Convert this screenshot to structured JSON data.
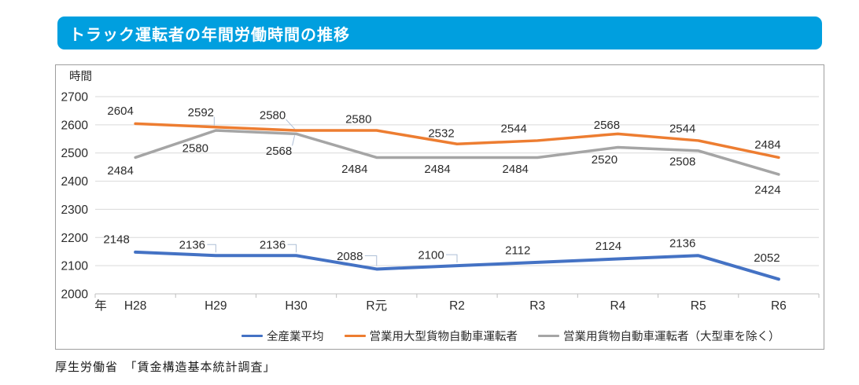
{
  "title": "トラック運転者の年間労働時間の推移",
  "source": "厚生労働省　「賃金構造基本統計調査」",
  "colors": {
    "banner": "#009fdf",
    "blue": "#4472C4",
    "orange": "#ED7D31",
    "gray": "#A5A5A5",
    "grid": "#d9d9d9",
    "axis": "#bfbfbf",
    "leader": "#aebfd6",
    "text": "#2b2b2b"
  },
  "chart_data": {
    "type": "line",
    "title": "トラック運転者の年間労働時間の推移",
    "y_unit_label": "時間",
    "x_axis_label": "年",
    "categories": [
      "H28",
      "H29",
      "H30",
      "R元",
      "R2",
      "R3",
      "R4",
      "R5",
      "R6"
    ],
    "series": [
      {
        "name": "全産業平均",
        "color_key": "blue",
        "values": [
          2148,
          2136,
          2136,
          2088,
          2100,
          2112,
          2124,
          2136,
          2052
        ]
      },
      {
        "name": "営業用大型貨物自動車運転者",
        "color_key": "orange",
        "values": [
          2604,
          2592,
          2580,
          2580,
          2532,
          2544,
          2568,
          2544,
          2484
        ]
      },
      {
        "name": "営業用貨物自動車運転者（大型車を除く）",
        "color_key": "gray",
        "values": [
          2484,
          2580,
          2568,
          2484,
          2484,
          2484,
          2520,
          2508,
          2424
        ]
      }
    ],
    "ylim": [
      2000,
      2700
    ],
    "y_tick_step": 100,
    "grid": true,
    "data_labels": true,
    "legend_position": "bottom"
  }
}
